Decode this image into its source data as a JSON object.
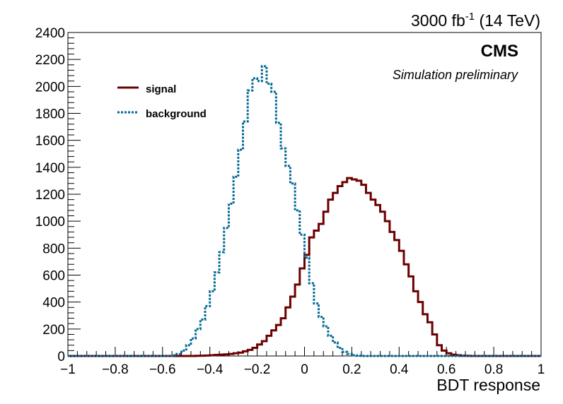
{
  "header": {
    "lumi_prefix": "3000 fb",
    "lumi_exponent": "-1",
    "lumi_suffix": " (14 TeV)",
    "experiment": "CMS",
    "status": "Simulation preliminary"
  },
  "chart_data": {
    "type": "line",
    "style": "step-histogram",
    "title": "",
    "xlabel": "BDT response",
    "ylabel": "",
    "xlim": [
      -1,
      1
    ],
    "ylim": [
      0,
      2400
    ],
    "xticks": [
      "−1",
      "−0.8",
      "−0.6",
      "−0.4",
      "−0.2",
      "0",
      "0.2",
      "0.4",
      "0.6",
      "0.8",
      "1"
    ],
    "xtick_values": [
      -1,
      -0.8,
      -0.6,
      -0.4,
      -0.2,
      0,
      0.2,
      0.4,
      0.6,
      0.8,
      1
    ],
    "yticks": [
      "0",
      "200",
      "400",
      "600",
      "800",
      "1000",
      "1200",
      "1400",
      "1600",
      "1800",
      "2000",
      "2200",
      "2400"
    ],
    "ytick_values": [
      0,
      200,
      400,
      600,
      800,
      1000,
      1200,
      1400,
      1600,
      1800,
      2000,
      2200,
      2400
    ],
    "grid": false,
    "legend_position": "top-left",
    "bin_edges_range": [
      -1,
      1
    ],
    "bin_count": 100,
    "series": [
      {
        "name": "signal",
        "color": "#6b0000",
        "line_style": "solid",
        "values": [
          0,
          0,
          0,
          0,
          0,
          0,
          0,
          0,
          0,
          0,
          0,
          0,
          0,
          0,
          0,
          0,
          0,
          0,
          0,
          0,
          0,
          0,
          0,
          0,
          0,
          0,
          0,
          1,
          2,
          3,
          5,
          8,
          10,
          12,
          15,
          20,
          25,
          35,
          45,
          60,
          85,
          110,
          150,
          190,
          230,
          280,
          360,
          440,
          530,
          650,
          750,
          880,
          930,
          980,
          1070,
          1160,
          1210,
          1260,
          1290,
          1320,
          1310,
          1300,
          1270,
          1210,
          1160,
          1120,
          1070,
          1000,
          920,
          860,
          780,
          680,
          590,
          480,
          400,
          310,
          250,
          160,
          80,
          40,
          20,
          10,
          5,
          2,
          1,
          0,
          0,
          0,
          0,
          0,
          0,
          0,
          0,
          0,
          0,
          0,
          0,
          0,
          0,
          0
        ]
      },
      {
        "name": "background",
        "color": "#006994",
        "line_style": "dotted",
        "values": [
          0,
          0,
          0,
          0,
          0,
          0,
          0,
          0,
          0,
          0,
          0,
          0,
          0,
          0,
          0,
          0,
          0,
          0,
          0,
          0,
          0,
          0,
          5,
          15,
          40,
          80,
          130,
          200,
          270,
          370,
          480,
          620,
          770,
          950,
          1130,
          1330,
          1530,
          1740,
          1970,
          2060,
          2040,
          2150,
          2020,
          1960,
          1730,
          1540,
          1410,
          1280,
          1080,
          900,
          730,
          540,
          390,
          290,
          220,
          150,
          100,
          60,
          30,
          15,
          5,
          2,
          0,
          0,
          0,
          0,
          0,
          0,
          0,
          0,
          0,
          0,
          0,
          0,
          0,
          0,
          0,
          0,
          0,
          0,
          0,
          0,
          0,
          0,
          0,
          0,
          0,
          0,
          0,
          0,
          0,
          0,
          0,
          0,
          0,
          0,
          0,
          0,
          0,
          0
        ]
      }
    ]
  }
}
